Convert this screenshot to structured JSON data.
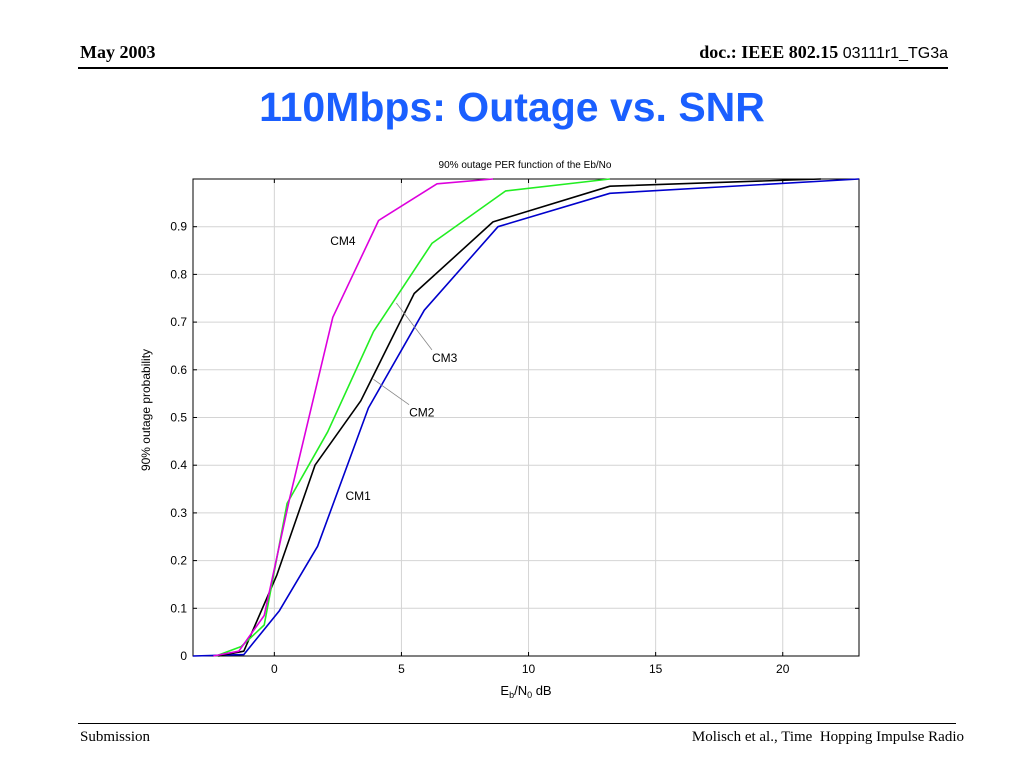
{
  "header": {
    "date": "May 2003",
    "doc_label": "doc.: IEEE 802.15",
    "doc_code": "03111r1_TG3a"
  },
  "slide": {
    "title": "110Mbps: Outage vs. SNR"
  },
  "footer": {
    "left": "Submission",
    "right": "Molisch et al., Time  Hopping Impulse Radio"
  },
  "chart_data": {
    "type": "line",
    "title": "90% outage PER function of the Eb/No",
    "xlabel": {
      "main": "E",
      "sub1": "b",
      "mid": "/N",
      "sub2": "0",
      "tail": " dB"
    },
    "ylabel": "90% outage probability",
    "xlim": [
      -3.2,
      23
    ],
    "ylim": [
      0,
      1
    ],
    "xticks": [
      0,
      5,
      10,
      15,
      20
    ],
    "yticks": [
      0,
      0.1,
      0.2,
      0.3,
      0.4,
      0.5,
      0.6,
      0.7,
      0.8,
      0.9
    ],
    "xtick_labels": [
      "0",
      "5",
      "10",
      "15",
      "20"
    ],
    "ytick_labels": [
      "0",
      "0.1",
      "0.2",
      "0.3",
      "0.4",
      "0.5",
      "0.6",
      "0.7",
      "0.8",
      "0.9"
    ],
    "grid": true,
    "series": [
      {
        "name": "CM1",
        "color": "#0000cc",
        "x": [
          -3.2,
          -1.2,
          0.2,
          1.7,
          3.7,
          5.9,
          8.8,
          13.2,
          23
        ],
        "y": [
          0,
          0.003,
          0.095,
          0.23,
          0.52,
          0.725,
          0.9,
          0.97,
          1.0
        ]
      },
      {
        "name": "CM2",
        "color": "#000000",
        "x": [
          -2.2,
          -1.2,
          0.1,
          1.6,
          3.4,
          5.5,
          8.6,
          13.2,
          21.5
        ],
        "y": [
          0,
          0.01,
          0.17,
          0.4,
          0.535,
          0.76,
          0.91,
          0.985,
          1.0
        ]
      },
      {
        "name": "CM3",
        "color": "#22ee22",
        "x": [
          -2.3,
          -1.3,
          -0.4,
          0.5,
          2.1,
          3.9,
          6.2,
          9.1,
          13.2
        ],
        "y": [
          0,
          0.02,
          0.065,
          0.32,
          0.47,
          0.68,
          0.865,
          0.975,
          1.0
        ]
      },
      {
        "name": "CM4",
        "color": "#dd00dd",
        "x": [
          -2.4,
          -1.4,
          -0.4,
          0.6,
          2.3,
          4.1,
          6.4,
          8.6
        ],
        "y": [
          0,
          0.01,
          0.085,
          0.33,
          0.71,
          0.913,
          0.99,
          1.0
        ]
      }
    ],
    "annotations": [
      {
        "text": "CM4",
        "x": 2.2,
        "y": 0.87,
        "to": null
      },
      {
        "text": "CM3",
        "x": 6.2,
        "y": 0.625,
        "to": [
          4.8,
          0.74
        ]
      },
      {
        "text": "CM2",
        "x": 5.3,
        "y": 0.51,
        "to": [
          3.9,
          0.58
        ]
      },
      {
        "text": "CM1",
        "x": 2.8,
        "y": 0.335,
        "to": null
      }
    ]
  }
}
